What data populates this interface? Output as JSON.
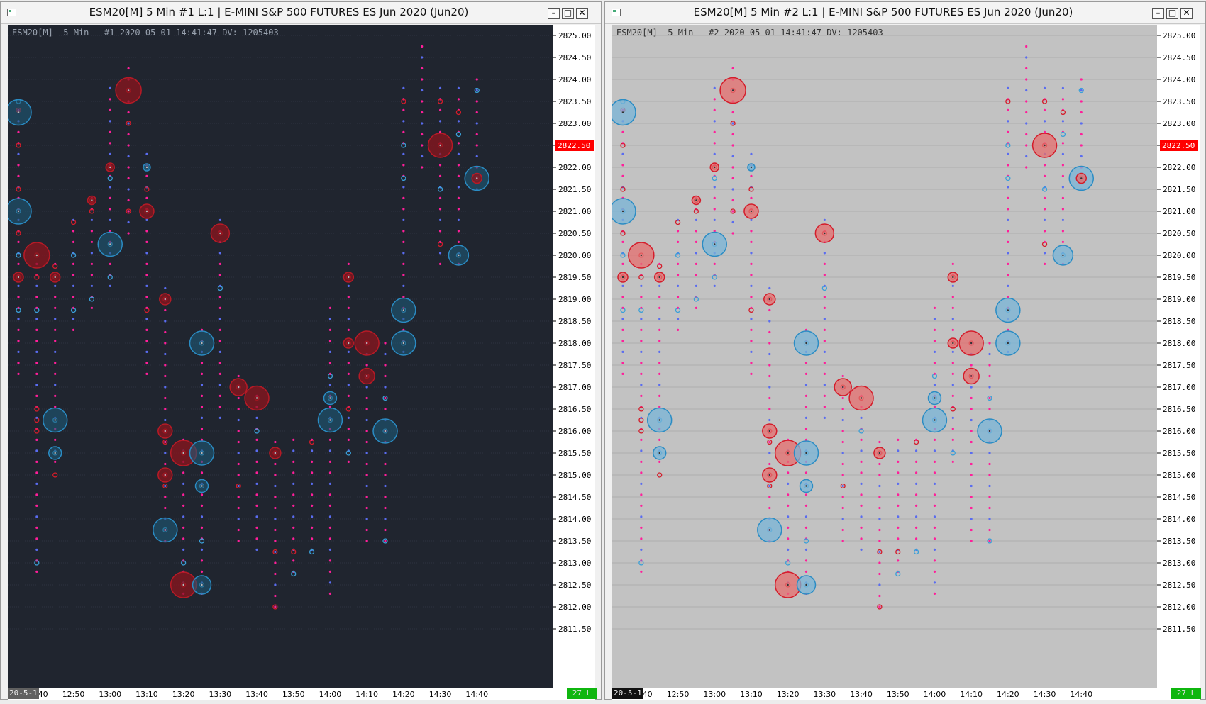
{
  "window1": {
    "title": "ESM20[M]  5 Min  #1  L:1 | E-MINI S&P 500 FUTURES ES Jun 2020 (Jun20)",
    "info": "ESM20[M]  5 Min   #1 2020-05-01 14:41:47 DV: 1205403",
    "date_label": "20-5-1",
    "status": "27 L",
    "background": "#20252f"
  },
  "window2": {
    "title": "ESM20[M]  5 Min  #2  L:1 | E-MINI S&P 500 FUTURES ES Jun 2020 (Jun20)",
    "info": "ESM20[M]  5 Min   #2 2020-05-01 14:41:47 DV: 1205403",
    "date_label": "20-5-1",
    "status": "27 L",
    "background": "#c2c2c2"
  },
  "window_buttons": {
    "minimize": "–",
    "maximize": "□",
    "close": "✕"
  },
  "icons": {
    "system_menu": "window-icon"
  },
  "price_axis": {
    "labels": [
      "2825.00",
      "2824.50",
      "2824.00",
      "2823.50",
      "2823.00",
      "2822.50",
      "2822.00",
      "2821.50",
      "2821.00",
      "2820.50",
      "2820.00",
      "2819.50",
      "2819.00",
      "2818.50",
      "2818.00",
      "2817.50",
      "2817.00",
      "2816.50",
      "2816.00",
      "2815.50",
      "2815.00",
      "2814.50",
      "2814.00",
      "2813.50",
      "2813.00",
      "2812.50",
      "2812.00",
      "2811.50"
    ],
    "current_price": "2822.50",
    "current_price_color": "#ff0000"
  },
  "time_axis": {
    "labels": [
      "12:40",
      "12:50",
      "13:00",
      "13:10",
      "13:20",
      "13:30",
      "13:40",
      "13:50",
      "14:00",
      "14:10",
      "14:20",
      "14:30",
      "14:40"
    ]
  },
  "colors": {
    "buy": "#3aa0d8",
    "sell": "#d41c2a",
    "tick_buy": "#5a6cf0",
    "tick_sell": "#ff1e9a"
  },
  "chart_data": {
    "type": "scatter",
    "description_units": "x = bar time, y = price; size = relative volume bubble",
    "bars": [
      {
        "time": "12:35",
        "high": 2823.3,
        "low": 2817.3,
        "bubbles": [
          {
            "p": 2823.5,
            "s": "b",
            "r": 3
          },
          {
            "p": 2823.3,
            "s": "s",
            "r": 3
          },
          {
            "p": 2822.5,
            "s": "s",
            "r": 3
          },
          {
            "p": 2821.5,
            "s": "s",
            "r": 3
          },
          {
            "p": 2821.0,
            "s": "b",
            "r": 3
          },
          {
            "p": 2820.5,
            "s": "s",
            "r": 3
          },
          {
            "p": 2820.0,
            "s": "b",
            "r": 3
          },
          {
            "p": 2819.5,
            "s": "s",
            "r": 3
          },
          {
            "p": 2818.75,
            "s": "b",
            "r": 3
          }
        ]
      },
      {
        "time": "12:40",
        "high": 2819.8,
        "low": 2812.8,
        "bubbles": [
          {
            "p": 2820.0,
            "s": "s",
            "r": 3
          },
          {
            "p": 2819.5,
            "s": "s",
            "r": 3
          },
          {
            "p": 2818.75,
            "s": "b",
            "r": 3
          },
          {
            "p": 2816.5,
            "s": "s",
            "r": 3
          },
          {
            "p": 2816.25,
            "s": "s",
            "r": 3
          },
          {
            "p": 2816.0,
            "s": "s",
            "r": 3
          },
          {
            "p": 2813.0,
            "s": "b",
            "r": 3
          }
        ]
      },
      {
        "time": "12:45",
        "high": 2819.8,
        "low": 2815.3,
        "bubbles": [
          {
            "p": 2819.75,
            "s": "s",
            "r": 3
          },
          {
            "p": 2819.5,
            "s": "s",
            "r": 3
          },
          {
            "p": 2816.25,
            "s": "b",
            "r": 3
          },
          {
            "p": 2815.5,
            "s": "b",
            "r": 3
          },
          {
            "p": 2815.0,
            "s": "s",
            "r": 3
          }
        ]
      },
      {
        "time": "12:50",
        "high": 2820.8,
        "low": 2818.3,
        "bubbles": [
          {
            "p": 2820.75,
            "s": "s",
            "r": 3
          },
          {
            "p": 2820.0,
            "s": "b",
            "r": 3
          },
          {
            "p": 2818.75,
            "s": "b",
            "r": 3
          }
        ]
      },
      {
        "time": "12:55",
        "high": 2821.5,
        "low": 2818.8,
        "bubbles": [
          {
            "p": 2821.25,
            "s": "s",
            "r": 3
          },
          {
            "p": 2821.0,
            "s": "s",
            "r": 3
          },
          {
            "p": 2819.0,
            "s": "b",
            "r": 3
          }
        ]
      },
      {
        "time": "13:00",
        "high": 2824.0,
        "low": 2819.3,
        "bubbles": [
          {
            "p": 2822.0,
            "s": "s",
            "r": 3
          },
          {
            "p": 2821.75,
            "s": "b",
            "r": 3
          },
          {
            "p": 2820.25,
            "s": "b",
            "r": 3
          },
          {
            "p": 2819.5,
            "s": "b",
            "r": 3
          }
        ]
      },
      {
        "time": "13:05",
        "high": 2824.3,
        "low": 2820.5,
        "bubbles": [
          {
            "p": 2823.75,
            "s": "s",
            "r": 3
          },
          {
            "p": 2823.0,
            "s": "s",
            "r": 3
          },
          {
            "p": 2821.0,
            "s": "s",
            "r": 3
          }
        ]
      },
      {
        "time": "13:10",
        "high": 2822.3,
        "low": 2817.3,
        "bubbles": [
          {
            "p": 2822.0,
            "s": "b",
            "r": 3
          },
          {
            "p": 2821.5,
            "s": "s",
            "r": 3
          },
          {
            "p": 2821.0,
            "s": "s",
            "r": 3
          },
          {
            "p": 2818.75,
            "s": "s",
            "r": 3
          }
        ]
      },
      {
        "time": "13:15",
        "high": 2819.3,
        "low": 2813.5,
        "bubbles": [
          {
            "p": 2819.0,
            "s": "s",
            "r": 3
          },
          {
            "p": 2816.0,
            "s": "s",
            "r": 3
          },
          {
            "p": 2815.75,
            "s": "s",
            "r": 3
          },
          {
            "p": 2815.0,
            "s": "s",
            "r": 3
          },
          {
            "p": 2814.75,
            "s": "s",
            "r": 3
          },
          {
            "p": 2813.75,
            "s": "b",
            "r": 3
          }
        ]
      },
      {
        "time": "13:20",
        "high": 2815.8,
        "low": 2812.3,
        "bubbles": [
          {
            "p": 2815.5,
            "s": "s",
            "r": 3
          },
          {
            "p": 2813.0,
            "s": "b",
            "r": 3
          },
          {
            "p": 2812.5,
            "s": "s",
            "r": 3
          }
        ]
      },
      {
        "time": "13:25",
        "high": 2818.3,
        "low": 2812.3,
        "bubbles": [
          {
            "p": 2818.0,
            "s": "b",
            "r": 3
          },
          {
            "p": 2815.5,
            "s": "b",
            "r": 3
          },
          {
            "p": 2814.75,
            "s": "b",
            "r": 3
          },
          {
            "p": 2813.5,
            "s": "b",
            "r": 3
          },
          {
            "p": 2812.5,
            "s": "b",
            "r": 3
          }
        ]
      },
      {
        "time": "13:30",
        "high": 2820.8,
        "low": 2816.3,
        "bubbles": [
          {
            "p": 2820.5,
            "s": "s",
            "r": 3
          },
          {
            "p": 2819.25,
            "s": "b",
            "r": 3
          }
        ]
      },
      {
        "time": "13:35",
        "high": 2817.3,
        "low": 2813.5,
        "bubbles": [
          {
            "p": 2817.0,
            "s": "s",
            "r": 3
          },
          {
            "p": 2814.75,
            "s": "s",
            "r": 3
          }
        ]
      },
      {
        "time": "13:40",
        "high": 2817.0,
        "low": 2813.3,
        "bubbles": [
          {
            "p": 2816.75,
            "s": "s",
            "r": 3
          },
          {
            "p": 2816.0,
            "s": "b",
            "r": 3
          }
        ]
      },
      {
        "time": "13:45",
        "high": 2815.8,
        "low": 2812.0,
        "bubbles": [
          {
            "p": 2815.5,
            "s": "s",
            "r": 3
          },
          {
            "p": 2813.25,
            "s": "s",
            "r": 3
          },
          {
            "p": 2812.0,
            "s": "s",
            "r": 3
          }
        ]
      },
      {
        "time": "13:50",
        "high": 2816.0,
        "low": 2812.8,
        "bubbles": [
          {
            "p": 2813.25,
            "s": "s",
            "r": 3
          },
          {
            "p": 2812.75,
            "s": "b",
            "r": 3
          }
        ]
      },
      {
        "time": "13:55",
        "high": 2815.8,
        "low": 2813.3,
        "bubbles": [
          {
            "p": 2815.75,
            "s": "s",
            "r": 3
          },
          {
            "p": 2813.25,
            "s": "b",
            "r": 3
          }
        ]
      },
      {
        "time": "14:00",
        "high": 2819.0,
        "low": 2812.3,
        "bubbles": [
          {
            "p": 2817.25,
            "s": "b",
            "r": 3
          },
          {
            "p": 2816.75,
            "s": "b",
            "r": 3
          },
          {
            "p": 2816.25,
            "s": "b",
            "r": 3
          }
        ]
      },
      {
        "time": "14:05",
        "high": 2819.8,
        "low": 2815.3,
        "bubbles": [
          {
            "p": 2819.5,
            "s": "s",
            "r": 3
          },
          {
            "p": 2818.0,
            "s": "s",
            "r": 3
          },
          {
            "p": 2816.5,
            "s": "s",
            "r": 3
          },
          {
            "p": 2815.5,
            "s": "b",
            "r": 3
          }
        ]
      },
      {
        "time": "14:10",
        "high": 2818.0,
        "low": 2813.5,
        "bubbles": [
          {
            "p": 2817.25,
            "s": "s",
            "r": 3
          },
          {
            "p": 2818.0,
            "s": "s",
            "r": 3
          }
        ]
      },
      {
        "time": "14:15",
        "high": 2818.0,
        "low": 2813.5,
        "bubbles": [
          {
            "p": 2816.75,
            "s": "b",
            "r": 3
          },
          {
            "p": 2816.0,
            "s": "b",
            "r": 3
          },
          {
            "p": 2813.5,
            "s": "b",
            "r": 3
          }
        ]
      },
      {
        "time": "14:20",
        "high": 2823.8,
        "low": 2817.8,
        "bubbles": [
          {
            "p": 2823.5,
            "s": "s",
            "r": 3
          },
          {
            "p": 2822.5,
            "s": "b",
            "r": 3
          },
          {
            "p": 2821.75,
            "s": "b",
            "r": 3
          },
          {
            "p": 2818.75,
            "s": "b",
            "r": 3
          },
          {
            "p": 2818.0,
            "s": "b",
            "r": 3
          }
        ]
      },
      {
        "time": "14:25",
        "high": 2824.8,
        "low": 2822.0,
        "bubbles": []
      },
      {
        "time": "14:30",
        "high": 2823.8,
        "low": 2819.8,
        "bubbles": [
          {
            "p": 2823.5,
            "s": "s",
            "r": 3
          },
          {
            "p": 2822.5,
            "s": "s",
            "r": 3
          },
          {
            "p": 2821.5,
            "s": "b",
            "r": 3
          },
          {
            "p": 2820.25,
            "s": "s",
            "r": 3
          }
        ]
      },
      {
        "time": "14:35",
        "high": 2823.8,
        "low": 2819.8,
        "bubbles": [
          {
            "p": 2823.25,
            "s": "s",
            "r": 3
          },
          {
            "p": 2822.75,
            "s": "b",
            "r": 3
          },
          {
            "p": 2820.0,
            "s": "b",
            "r": 3
          }
        ]
      },
      {
        "time": "14:40",
        "high": 2824.0,
        "low": 2821.5,
        "bubbles": [
          {
            "p": 2823.75,
            "s": "b",
            "r": 3
          },
          {
            "p": 2821.75,
            "s": "s",
            "r": 3
          }
        ]
      }
    ],
    "big_bubbles": [
      {
        "time": "12:35",
        "p": 2823.25,
        "s": "b",
        "v": 18
      },
      {
        "time": "12:35",
        "p": 2821.0,
        "s": "b",
        "v": 18
      },
      {
        "time": "12:35",
        "p": 2819.5,
        "s": "s",
        "v": 7
      },
      {
        "time": "12:40",
        "p": 2820.0,
        "s": "s",
        "v": 18
      },
      {
        "time": "12:45",
        "p": 2819.5,
        "s": "s",
        "v": 7
      },
      {
        "time": "12:45",
        "p": 2816.25,
        "s": "b",
        "v": 17
      },
      {
        "time": "12:45",
        "p": 2815.5,
        "s": "b",
        "v": 9
      },
      {
        "time": "12:55",
        "p": 2821.25,
        "s": "s",
        "v": 6
      },
      {
        "time": "13:00",
        "p": 2820.25,
        "s": "b",
        "v": 17
      },
      {
        "time": "13:00",
        "p": 2822.0,
        "s": "s",
        "v": 6
      },
      {
        "time": "13:05",
        "p": 2823.75,
        "s": "s",
        "v": 18
      },
      {
        "time": "13:10",
        "p": 2821.0,
        "s": "s",
        "v": 10
      },
      {
        "time": "13:10",
        "p": 2822.0,
        "s": "b",
        "v": 5
      },
      {
        "time": "13:15",
        "p": 2819.0,
        "s": "s",
        "v": 8
      },
      {
        "time": "13:15",
        "p": 2816.0,
        "s": "s",
        "v": 10
      },
      {
        "time": "13:15",
        "p": 2815.0,
        "s": "s",
        "v": 10
      },
      {
        "time": "13:15",
        "p": 2813.75,
        "s": "b",
        "v": 17
      },
      {
        "time": "13:20",
        "p": 2815.5,
        "s": "s",
        "v": 18
      },
      {
        "time": "13:20",
        "p": 2812.5,
        "s": "s",
        "v": 18
      },
      {
        "time": "13:25",
        "p": 2818.0,
        "s": "b",
        "v": 17
      },
      {
        "time": "13:25",
        "p": 2815.5,
        "s": "b",
        "v": 17
      },
      {
        "time": "13:25",
        "p": 2814.75,
        "s": "b",
        "v": 9
      },
      {
        "time": "13:25",
        "p": 2812.5,
        "s": "b",
        "v": 13
      },
      {
        "time": "13:30",
        "p": 2820.5,
        "s": "s",
        "v": 13
      },
      {
        "time": "13:35",
        "p": 2817.0,
        "s": "s",
        "v": 12
      },
      {
        "time": "13:40",
        "p": 2816.75,
        "s": "s",
        "v": 17
      },
      {
        "time": "13:45",
        "p": 2815.5,
        "s": "s",
        "v": 8
      },
      {
        "time": "14:00",
        "p": 2816.25,
        "s": "b",
        "v": 17
      },
      {
        "time": "14:00",
        "p": 2816.75,
        "s": "b",
        "v": 9
      },
      {
        "time": "14:05",
        "p": 2819.5,
        "s": "s",
        "v": 7
      },
      {
        "time": "14:05",
        "p": 2818.0,
        "s": "s",
        "v": 7
      },
      {
        "time": "14:10",
        "p": 2817.25,
        "s": "s",
        "v": 11
      },
      {
        "time": "14:10",
        "p": 2818.0,
        "s": "s",
        "v": 17
      },
      {
        "time": "14:15",
        "p": 2816.0,
        "s": "b",
        "v": 17
      },
      {
        "time": "14:20",
        "p": 2818.75,
        "s": "b",
        "v": 17
      },
      {
        "time": "14:20",
        "p": 2818.0,
        "s": "b",
        "v": 17
      },
      {
        "time": "14:30",
        "p": 2822.5,
        "s": "s",
        "v": 17
      },
      {
        "time": "14:35",
        "p": 2820.0,
        "s": "b",
        "v": 14
      },
      {
        "time": "14:40",
        "p": 2821.75,
        "s": "b",
        "v": 17
      },
      {
        "time": "14:40",
        "p": 2821.75,
        "s": "s",
        "v": 7
      }
    ]
  }
}
